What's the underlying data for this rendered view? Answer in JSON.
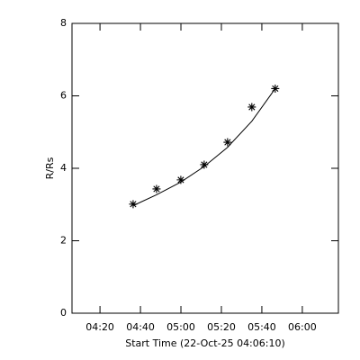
{
  "chart_data": {
    "type": "scatter",
    "ylabel": "R/Rs",
    "xlabel": "Start Time (22-Oct-25 04:06:10)",
    "x": [
      1813,
      2507,
      3227,
      3920,
      4613,
      5333,
      6027
    ],
    "values": [
      3.01,
      3.43,
      3.68,
      4.1,
      4.72,
      5.69,
      6.2
    ],
    "marker": "asterisk",
    "color": "#000000",
    "fit": {
      "x": [
        1813,
        2507,
        3227,
        3920,
        4613,
        5333,
        6027
      ],
      "values": [
        2.97,
        3.27,
        3.62,
        4.05,
        4.58,
        5.3,
        6.2
      ]
    },
    "xlim": [
      0,
      7900
    ],
    "ylim": [
      0,
      8
    ],
    "xticks": [
      {
        "value": 830,
        "label": "04:20"
      },
      {
        "value": 2030,
        "label": "04:40"
      },
      {
        "value": 3230,
        "label": "05:00"
      },
      {
        "value": 4430,
        "label": "05:20"
      },
      {
        "value": 5630,
        "label": "05:40"
      },
      {
        "value": 6830,
        "label": "06:00"
      }
    ],
    "yticks": [
      0,
      2,
      4,
      6,
      8
    ]
  }
}
